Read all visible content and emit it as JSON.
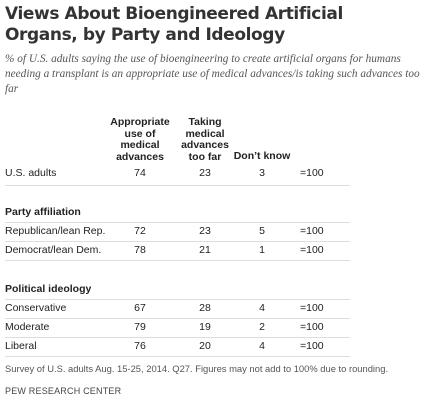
{
  "title": "Views About Bioengineered Artificial Organs, by Party and Ideology",
  "subtitle": "% of U.S. adults saying the use of bioengineering to create artificial organs for humans needing a transplant is an appropriate use of medical advances/is taking such advances too far",
  "table": {
    "headers": [
      "Appropriate use of medical advances",
      "Taking medical advances too far",
      "Don’t know"
    ],
    "overall": {
      "label": "U.S. adults",
      "values": [
        74,
        23,
        3
      ],
      "total": "=100"
    },
    "sections": [
      {
        "heading": "Party affiliation",
        "rows": [
          {
            "label": "Republican/lean Rep.",
            "values": [
              72,
              23,
              5
            ],
            "total": "=100"
          },
          {
            "label": "Democrat/lean Dem.",
            "values": [
              78,
              21,
              1
            ],
            "total": "=100"
          }
        ]
      },
      {
        "heading": "Political ideology",
        "rows": [
          {
            "label": "Conservative",
            "values": [
              67,
              28,
              4
            ],
            "total": "=100"
          },
          {
            "label": "Moderate",
            "values": [
              79,
              19,
              2
            ],
            "total": "=100"
          },
          {
            "label": "Liberal",
            "values": [
              76,
              20,
              4
            ],
            "total": "=100"
          }
        ]
      }
    ]
  },
  "footnote": "Survey of U.S. adults Aug. 15-25, 2014. Q27. Figures may not add to 100% due to rounding.",
  "source": "PEW RESEARCH CENTER"
}
